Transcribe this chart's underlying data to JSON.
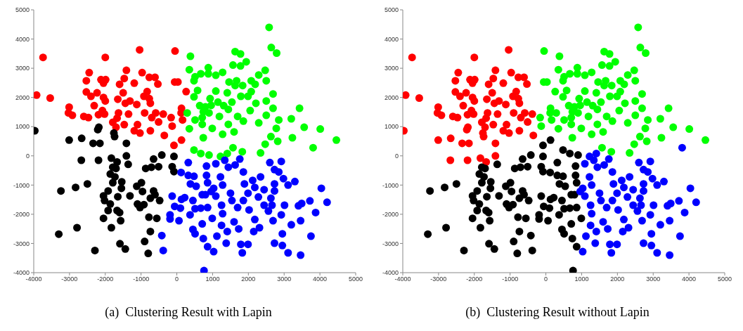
{
  "chart_data": [
    {
      "type": "scatter",
      "title": "(a)  Clustering Result with Lapin",
      "xlim": [
        -4000,
        5000
      ],
      "ylim": [
        -4000,
        5000
      ],
      "xticks": [
        -4000,
        -3000,
        -2000,
        -1000,
        0,
        1000,
        2000,
        3000,
        4000,
        5000
      ],
      "yticks": [
        -4000,
        -3000,
        -2000,
        -1000,
        0,
        1000,
        2000,
        3000,
        4000,
        5000
      ],
      "marker": "circle",
      "series": [
        {
          "color": "#ff0000",
          "x": [
            -3740,
            -3920,
            -3540,
            -3010,
            -3030,
            -2920,
            -2600,
            -2470,
            -2450,
            -2530,
            -2530,
            -2400,
            -2310,
            -2230,
            -2120,
            -1990,
            -2050,
            -2000,
            -2050,
            -2000,
            -2080,
            -2190,
            -2020,
            -1790,
            -1670,
            -1630,
            -1700,
            -1470,
            -1650,
            -1600,
            -1470,
            -1500,
            -1410,
            -1440,
            -1350,
            -1310,
            -1190,
            -1120,
            -1100,
            -1030,
            -1190,
            -1040,
            -970,
            -920,
            -830,
            -770,
            -740,
            -770,
            -610,
            -530,
            -900,
            -700,
            -590,
            -510,
            -740,
            -380,
            -350,
            -160,
            -130,
            -50,
            -60,
            30,
            260,
            130,
            120,
            160,
            130,
            -80
          ],
          "values": [
            3370,
            2080,
            1980,
            1670,
            1470,
            1390,
            1350,
            1310,
            2850,
            2570,
            2190,
            2040,
            1720,
            2160,
            2610,
            2610,
            2490,
            3370,
            2000,
            1880,
            1550,
            1410,
            1430,
            1150,
            1290,
            1470,
            980,
            1070,
            1940,
            2450,
            2650,
            2160,
            2930,
            1800,
            1430,
            1880,
            2490,
            1760,
            1070,
            780,
            860,
            3630,
            2850,
            2040,
            2200,
            1960,
            1800,
            2690,
            2690,
            2460,
            1470,
            1310,
            1470,
            1160,
            860,
            1430,
            700,
            1310,
            1020,
            3590,
            2530,
            2530,
            2200,
            1630,
            1470,
            1230,
            540,
            360
          ]
        },
        {
          "color": "#000000",
          "x": [
            -3970,
            -2180,
            -2210,
            -1760,
            -1740,
            -3010,
            -2660,
            -2340,
            -2150,
            -1410,
            -2670,
            -2190,
            -1830,
            -1670,
            -1410,
            -1790,
            -1700,
            -1860,
            -1730,
            -1790,
            -1540,
            -1550,
            -1360,
            -3240,
            -2830,
            -2500,
            -1920,
            -2050,
            -2020,
            -1860,
            -1920,
            -1670,
            -1600,
            -1650,
            -2050,
            -1570,
            -1310,
            -1120,
            -990,
            -960,
            -1100,
            -1030,
            -920,
            -870,
            -710,
            -650,
            -510,
            -420,
            -80,
            -130,
            -80,
            -650,
            -610,
            -740,
            -480,
            -780,
            -560,
            -2790,
            -3300,
            -1830,
            -740,
            -1590,
            -1440,
            -2290,
            -900,
            -800
          ],
          "values": [
            860,
            980,
            900,
            780,
            660,
            540,
            600,
            430,
            430,
            430,
            -150,
            -150,
            -80,
            -210,
            0,
            -390,
            -430,
            -620,
            -720,
            -920,
            -890,
            -1110,
            -290,
            -1200,
            -1080,
            -960,
            -1200,
            -1370,
            -1530,
            -1650,
            -1870,
            -1870,
            -1940,
            -1400,
            -2140,
            -2220,
            -1370,
            -1040,
            -920,
            -1220,
            -1650,
            -1770,
            -1670,
            -430,
            -390,
            -110,
            -370,
            30,
            -20,
            -370,
            -540,
            -1200,
            -1330,
            -1450,
            -1530,
            -2100,
            -2140,
            -2460,
            -2680,
            -2460,
            -2590,
            -3010,
            -3190,
            -3240,
            -2930,
            -3340
          ]
        },
        {
          "color": "#00ff00",
          "x": [
            2580,
            2640,
            2790,
            380,
            1630,
            1780,
            1570,
            1780,
            1940,
            350,
            880,
            880,
            670,
            510,
            1090,
            1280,
            480,
            1460,
            1670,
            1630,
            1840,
            2080,
            2290,
            2470,
            2500,
            2190,
            580,
            480,
            1090,
            1410,
            930,
            640,
            740,
            800,
            900,
            710,
            510,
            290,
            960,
            1150,
            1310,
            1540,
            1440,
            1990,
            2080,
            2210,
            2050,
            1790,
            2500,
            2690,
            2690,
            3430,
            2500,
            2850,
            3200,
            2290,
            1860,
            1700,
            1190,
            1440,
            710,
            990,
            350,
            1280,
            1600,
            3560,
            4010,
            2780,
            2630,
            740,
            3230,
            4460,
            1570,
            1830,
            2340,
            2470,
            2820,
            480,
            670,
            900,
            1410,
            1220,
            3810
          ],
          "values": [
            4400,
            3710,
            3520,
            3410,
            3570,
            3490,
            3110,
            3080,
            3220,
            2950,
            3020,
            2810,
            2810,
            2710,
            2760,
            2860,
            2570,
            2530,
            2570,
            2410,
            2410,
            2570,
            2770,
            2930,
            2570,
            2450,
            2240,
            2020,
            2220,
            2160,
            1960,
            1720,
            1510,
            1680,
            1470,
            1310,
            1230,
            1470,
            1730,
            1840,
            1720,
            1840,
            1590,
            2040,
            2200,
            1800,
            1550,
            2040,
            1880,
            2120,
            1630,
            1630,
            1390,
            1230,
            1270,
            1130,
            1190,
            1350,
            1350,
            1080,
            1080,
            940,
            930,
            740,
            820,
            980,
            920,
            940,
            660,
            620,
            620,
            540,
            280,
            140,
            100,
            400,
            500,
            200,
            80,
            30,
            80,
            -20,
            280
          ]
        },
        {
          "color": "#0000ff",
          "x": [
            760,
            -420,
            -380,
            -130,
            -60,
            -190,
            -190,
            60,
            100,
            130,
            220,
            120,
            320,
            320,
            480,
            380,
            540,
            370,
            450,
            510,
            670,
            450,
            510,
            740,
            710,
            830,
            830,
            860,
            710,
            800,
            860,
            990,
            860,
            960,
            1090,
            1030,
            1090,
            1220,
            1280,
            1250,
            1280,
            1250,
            1120,
            1030,
            1380,
            1410,
            1340,
            1440,
            1500,
            1540,
            1630,
            1760,
            1700,
            1600,
            1730,
            1830,
            1790,
            1990,
            1860,
            1890,
            1860,
            1990,
            2020,
            2120,
            2180,
            2180,
            2150,
            2280,
            2340,
            2440,
            2310,
            2440,
            2560,
            2600,
            2730,
            2850,
            2920,
            2730,
            2730,
            2630,
            2660,
            2690,
            2920,
            2980,
            3110,
            3300,
            3010,
            3200,
            2950,
            2730,
            2950,
            3110,
            3460,
            3460,
            3400,
            3490,
            3720,
            3750,
            3880,
            4040,
            4200
          ],
          "values": [
            -3930,
            -2730,
            -3240,
            -1380,
            -1730,
            -2020,
            -2160,
            -2220,
            -1790,
            -1490,
            -1430,
            -570,
            -230,
            -670,
            -700,
            -960,
            -1040,
            -2020,
            -1530,
            -1810,
            -1790,
            -2520,
            -2670,
            -2830,
            -2330,
            -350,
            -670,
            -920,
            -1330,
            -1330,
            -1770,
            -2140,
            -3110,
            -1220,
            -270,
            -1110,
            -1380,
            -720,
            -1000,
            -1690,
            -1980,
            -2380,
            -2750,
            -3280,
            -2990,
            -2590,
            -150,
            -390,
            -1280,
            -1530,
            -310,
            -110,
            -1770,
            -2260,
            -2500,
            -3320,
            -3030,
            -3030,
            -550,
            -960,
            -1530,
            -1280,
            -1850,
            -840,
            -1080,
            -2180,
            -2590,
            -1410,
            -720,
            -1160,
            -2460,
            -1690,
            -1890,
            -230,
            -470,
            -550,
            -190,
            -960,
            -1200,
            -1450,
            -1690,
            -2220,
            -2020,
            -780,
            -1000,
            -880,
            -1690,
            -2360,
            -2670,
            -2990,
            -3070,
            -3320,
            -3400,
            -2220,
            -1710,
            -1630,
            -1540,
            -2750,
            -1940,
            -1110,
            -1590
          ]
        }
      ]
    },
    {
      "type": "scatter",
      "title": "(b)  Clustering Result without Lapin",
      "xlim": [
        -4000,
        5000
      ],
      "ylim": [
        -4000,
        5000
      ],
      "xticks": [
        -4000,
        -3000,
        -2000,
        -1000,
        0,
        1000,
        2000,
        3000,
        4000,
        5000
      ],
      "yticks": [
        -4000,
        -3000,
        -2000,
        -1000,
        0,
        1000,
        2000,
        3000,
        4000,
        5000
      ],
      "marker": "circle",
      "series": [
        {
          "color": "#ff0000",
          "x": [
            -3740,
            -3920,
            -3540,
            -3010,
            -3030,
            -2920,
            -2600,
            -2470,
            -2450,
            -2530,
            -2530,
            -2400,
            -2310,
            -2230,
            -2120,
            -1990,
            -2050,
            -2000,
            -2050,
            -2000,
            -2080,
            -2190,
            -2020,
            -1790,
            -1670,
            -1630,
            -1700,
            -1470,
            -1650,
            -1600,
            -1470,
            -1500,
            -1410,
            -1440,
            -1350,
            -1310,
            -1190,
            -1120,
            -1100,
            -1030,
            -1190,
            -1040,
            -970,
            -920,
            -830,
            -770,
            -740,
            -770,
            -610,
            -530,
            -900,
            -700,
            -590,
            -510,
            -740,
            -380,
            -350,
            -3970,
            -2180,
            -2210,
            -1760,
            -1740,
            -3010,
            -2660,
            -2340,
            -2150,
            -1410,
            -2670,
            -2190,
            -1830,
            -1670,
            -1410
          ],
          "values": [
            3370,
            2080,
            1980,
            1670,
            1470,
            1390,
            1350,
            1310,
            2850,
            2570,
            2190,
            2040,
            1720,
            2160,
            2610,
            2610,
            2490,
            3370,
            2000,
            1880,
            1550,
            1410,
            1430,
            1150,
            1290,
            1470,
            980,
            1070,
            1940,
            2450,
            2650,
            2160,
            2930,
            1800,
            1430,
            1880,
            2490,
            1760,
            1070,
            780,
            860,
            3630,
            2850,
            2040,
            2200,
            1960,
            1800,
            2690,
            2690,
            2460,
            1470,
            1310,
            1470,
            1160,
            860,
            1430,
            700,
            860,
            980,
            900,
            780,
            660,
            540,
            600,
            430,
            430,
            430,
            -150,
            -150,
            -80,
            -210,
            0
          ]
        },
        {
          "color": "#000000",
          "x": [
            -1790,
            -1700,
            -1860,
            -1730,
            -1790,
            -1540,
            -1550,
            -1360,
            -3240,
            -2830,
            -2500,
            -1920,
            -2050,
            -2020,
            -1860,
            -1920,
            -1670,
            -1600,
            -1650,
            -2050,
            -1570,
            -1310,
            -1120,
            -990,
            -960,
            -1100,
            -1030,
            -920,
            -870,
            -710,
            -650,
            -510,
            -420,
            -80,
            -130,
            -80,
            -650,
            -610,
            -740,
            -480,
            -780,
            -560,
            -2790,
            -3300,
            -1830,
            -740,
            -1590,
            -1440,
            -2290,
            -900,
            -800,
            760,
            -420,
            -380,
            -130,
            -60,
            -190,
            -190,
            60,
            100,
            130,
            220,
            120,
            320,
            320,
            480,
            380,
            540,
            370,
            450,
            510,
            670,
            450,
            510,
            740,
            710,
            830,
            830,
            860,
            710,
            800,
            860,
            990,
            860,
            480,
            670,
            900,
            130,
            -80
          ],
          "values": [
            -390,
            -430,
            -620,
            -720,
            -920,
            -890,
            -1110,
            -290,
            -1200,
            -1080,
            -960,
            -1200,
            -1370,
            -1530,
            -1650,
            -1870,
            -1870,
            -1940,
            -1400,
            -2140,
            -2220,
            -1370,
            -1040,
            -920,
            -1220,
            -1650,
            -1770,
            -1670,
            -430,
            -390,
            -110,
            -370,
            30,
            -20,
            -370,
            -540,
            -1200,
            -1330,
            -1450,
            -1530,
            -2100,
            -2140,
            -2460,
            -2680,
            -2460,
            -2590,
            -3010,
            -3190,
            -3240,
            -2930,
            -3340,
            -3930,
            -2730,
            -3240,
            -1380,
            -1730,
            -2020,
            -2160,
            -2220,
            -1790,
            -1490,
            -1430,
            -570,
            -230,
            -670,
            -700,
            -960,
            -1040,
            -2020,
            -1530,
            -1810,
            -1790,
            -2520,
            -2670,
            -2830,
            -2330,
            -350,
            -670,
            -920,
            -1330,
            -1330,
            -1770,
            -2140,
            -3110,
            200,
            80,
            30,
            540,
            360
          ]
        },
        {
          "color": "#00ff00",
          "x": [
            2580,
            2640,
            2790,
            380,
            1630,
            1780,
            1570,
            1780,
            1940,
            350,
            880,
            880,
            670,
            510,
            1090,
            1280,
            480,
            1460,
            1670,
            1630,
            1840,
            2080,
            2290,
            2470,
            2500,
            2190,
            580,
            480,
            1090,
            1410,
            930,
            640,
            740,
            800,
            900,
            710,
            510,
            290,
            960,
            1150,
            1310,
            1540,
            1440,
            1990,
            2080,
            2210,
            2050,
            1790,
            2500,
            2690,
            2690,
            3430,
            2500,
            2850,
            3200,
            2290,
            1860,
            1700,
            1190,
            1440,
            710,
            990,
            350,
            1280,
            1600,
            3560,
            4010,
            2780,
            2630,
            740,
            3230,
            4460,
            1570,
            1830,
            2340,
            2470,
            2820,
            -50,
            -60,
            30,
            260,
            130,
            120,
            160,
            -160,
            -130
          ],
          "values": [
            4400,
            3710,
            3520,
            3410,
            3570,
            3490,
            3110,
            3080,
            3220,
            2950,
            3020,
            2810,
            2810,
            2710,
            2760,
            2860,
            2570,
            2530,
            2570,
            2410,
            2410,
            2570,
            2770,
            2930,
            2570,
            2450,
            2240,
            2020,
            2220,
            2160,
            1960,
            1720,
            1510,
            1680,
            1470,
            1310,
            1230,
            1470,
            1730,
            1840,
            1720,
            1840,
            1590,
            2040,
            2200,
            1800,
            1550,
            2040,
            1880,
            2120,
            1630,
            1630,
            1390,
            1230,
            1270,
            1130,
            1190,
            1350,
            1350,
            1080,
            1080,
            940,
            930,
            740,
            820,
            980,
            920,
            940,
            660,
            620,
            620,
            540,
            280,
            140,
            100,
            400,
            500,
            3590,
            2530,
            2530,
            2200,
            1630,
            1470,
            1230,
            1310,
            1020
          ]
        },
        {
          "color": "#0000ff",
          "x": [
            960,
            1090,
            1030,
            1090,
            1220,
            1280,
            1250,
            1280,
            1250,
            1120,
            1030,
            1380,
            1410,
            1340,
            1440,
            1500,
            1540,
            1630,
            1760,
            1700,
            1600,
            1730,
            1830,
            1790,
            1990,
            1860,
            1890,
            1860,
            1990,
            2020,
            2120,
            2180,
            2180,
            2150,
            2280,
            2340,
            2440,
            2310,
            2440,
            2560,
            2600,
            2730,
            2850,
            2920,
            2730,
            2730,
            2630,
            2660,
            2690,
            2920,
            2980,
            3110,
            3300,
            3010,
            3200,
            2950,
            2730,
            2950,
            3110,
            3460,
            3460,
            3400,
            3490,
            3720,
            3750,
            3880,
            4040,
            4200,
            3810,
            1410,
            1220
          ],
          "values": [
            -1220,
            -270,
            -1110,
            -1380,
            -720,
            -1000,
            -1690,
            -1980,
            -2380,
            -2750,
            -3280,
            -2990,
            -2590,
            -150,
            -390,
            -1280,
            -1530,
            -310,
            -110,
            -1770,
            -2260,
            -2500,
            -3320,
            -3030,
            -3030,
            -550,
            -960,
            -1530,
            -1280,
            -1850,
            -840,
            -1080,
            -2180,
            -2590,
            -1410,
            -720,
            -1160,
            -2460,
            -1690,
            -1890,
            -230,
            -470,
            -550,
            -190,
            -960,
            -1200,
            -1450,
            -1690,
            -2220,
            -2020,
            -780,
            -1000,
            -880,
            -1690,
            -2360,
            -2670,
            -2990,
            -3070,
            -3320,
            -3400,
            -2220,
            -1710,
            -1630,
            -1540,
            -2750,
            -1940,
            -1110,
            -1590,
            280,
            80,
            -20
          ]
        }
      ]
    }
  ]
}
